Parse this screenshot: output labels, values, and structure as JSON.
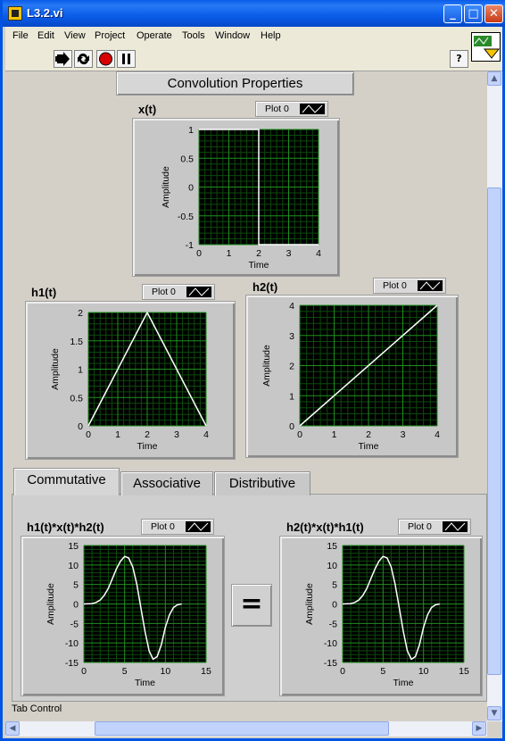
{
  "window": {
    "title": "L3.2.vi"
  },
  "title_buttons": [
    "_",
    "□",
    "✕"
  ],
  "menu": [
    "File",
    "Edit",
    "View",
    "Project",
    "Operate",
    "Tools",
    "Window",
    "Help"
  ],
  "toolbar": {
    "help_label": "?"
  },
  "panel_title": "Convolution Properties",
  "legend_label": "Plot 0",
  "colors": {
    "grid_bg": "#000000",
    "grid_major": "#1f8f1f",
    "grid_minor": "#0d4a0d",
    "trace": "#ffffff",
    "titlebar": "#0a5ce8"
  },
  "tabs": [
    "Commutative",
    "Associative",
    "Distributive"
  ],
  "equals_label": "=",
  "status_label": "Tab Control",
  "chart_data": [
    {
      "id": "x",
      "type": "line",
      "title": "x(t)",
      "xlabel": "Time",
      "ylabel": "Amplitude",
      "xlim": [
        0,
        4
      ],
      "ylim": [
        -1,
        1
      ],
      "xticks": [
        0,
        1,
        2,
        3,
        4
      ],
      "yticks": [
        1,
        0.5,
        0,
        -0.5,
        -1
      ],
      "xtick_labels": [
        "0",
        "1",
        "2",
        "3",
        "4"
      ],
      "ytick_labels": [
        "1",
        "0.5",
        "0",
        "-0.5",
        "-1"
      ],
      "x": [
        0,
        2,
        2,
        4
      ],
      "y": [
        1,
        1,
        -1,
        -1
      ]
    },
    {
      "id": "h1",
      "type": "line",
      "title": "h1(t)",
      "xlabel": "Time",
      "ylabel": "Amplitude",
      "xlim": [
        0,
        4
      ],
      "ylim": [
        0,
        2
      ],
      "xticks": [
        0,
        1,
        2,
        3,
        4
      ],
      "yticks": [
        2,
        1.5,
        1,
        0.5,
        0
      ],
      "xtick_labels": [
        "0",
        "1",
        "2",
        "3",
        "4"
      ],
      "ytick_labels": [
        "2",
        "1.5",
        "1",
        "0.5",
        "0"
      ],
      "x": [
        0,
        2,
        4
      ],
      "y": [
        0,
        2,
        0
      ]
    },
    {
      "id": "h2",
      "type": "line",
      "title": "h2(t)",
      "xlabel": "Time",
      "ylabel": "Amplitude",
      "xlim": [
        0,
        4
      ],
      "ylim": [
        0,
        4
      ],
      "xticks": [
        0,
        1,
        2,
        3,
        4
      ],
      "yticks": [
        4,
        3,
        2,
        1,
        0
      ],
      "xtick_labels": [
        "0",
        "1",
        "2",
        "3",
        "4"
      ],
      "ytick_labels": [
        "4",
        "3",
        "2",
        "1",
        "0"
      ],
      "x": [
        0,
        4
      ],
      "y": [
        0,
        4
      ]
    },
    {
      "id": "c1",
      "type": "line",
      "title": "h1(t)*x(t)*h2(t)",
      "xlabel": "Time",
      "ylabel": "Amplitude",
      "xlim": [
        0,
        15
      ],
      "ylim": [
        -15,
        15
      ],
      "xticks": [
        0,
        5,
        10,
        15
      ],
      "yticks": [
        15,
        10,
        5,
        0,
        -5,
        -10,
        -15
      ],
      "xtick_labels": [
        "0",
        "5",
        "10",
        "15"
      ],
      "ytick_labels": [
        "15",
        "10",
        "5",
        "0",
        "-5",
        "-10",
        "-15"
      ],
      "x": [
        0,
        1,
        1.5,
        2,
        2.5,
        3,
        3.5,
        4,
        4.5,
        5,
        5.5,
        6,
        6.5,
        7,
        7.5,
        8,
        8.5,
        9,
        9.5,
        10,
        10.5,
        11,
        11.5,
        12
      ],
      "y": [
        0,
        0.1,
        0.4,
        1,
        2.2,
        4,
        6.5,
        9,
        11,
        12.2,
        11.8,
        9.5,
        5,
        -1,
        -7,
        -12,
        -14.2,
        -13.5,
        -10.5,
        -6,
        -2.8,
        -0.9,
        -0.2,
        0
      ]
    },
    {
      "id": "c2",
      "type": "line",
      "title": "h2(t)*x(t)*h1(t)",
      "xlabel": "Time",
      "ylabel": "Amplitude",
      "xlim": [
        0,
        15
      ],
      "ylim": [
        -15,
        15
      ],
      "xticks": [
        0,
        5,
        10,
        15
      ],
      "yticks": [
        15,
        10,
        5,
        0,
        -5,
        -10,
        -15
      ],
      "xtick_labels": [
        "0",
        "5",
        "10",
        "15"
      ],
      "ytick_labels": [
        "15",
        "10",
        "5",
        "0",
        "-5",
        "-10",
        "-15"
      ],
      "x": [
        0,
        1,
        1.5,
        2,
        2.5,
        3,
        3.5,
        4,
        4.5,
        5,
        5.5,
        6,
        6.5,
        7,
        7.5,
        8,
        8.5,
        9,
        9.5,
        10,
        10.5,
        11,
        11.5,
        12
      ],
      "y": [
        0,
        0.1,
        0.4,
        1,
        2.2,
        4,
        6.5,
        9,
        11,
        12.2,
        11.8,
        9.5,
        5,
        -1,
        -7,
        -12,
        -14.2,
        -13.5,
        -10.5,
        -6,
        -2.8,
        -0.9,
        -0.2,
        0
      ]
    }
  ]
}
